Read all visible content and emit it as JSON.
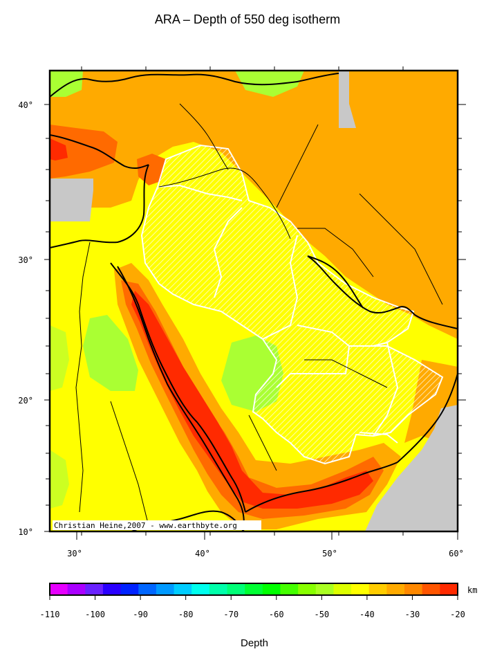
{
  "title": "ARA – Depth of 550 deg isotherm",
  "credit": "Christian Heine,2007 - www.earthbyte.org",
  "colors": {
    "orange": "#ffaa00",
    "dark_orange": "#ff6a00",
    "red": "#ff2a00",
    "light_orange": "#ff9900",
    "yellow": "#ffff00",
    "lime": "#aaff33",
    "green_yellow": "#ccff22",
    "gray": "#c8c8c8"
  },
  "map": {
    "lon_ticks": [
      "30°",
      "40°",
      "50°",
      "60°"
    ],
    "lat_ticks": [
      "10°",
      "20°",
      "30°",
      "40°"
    ]
  },
  "colorbar": {
    "unit": "km",
    "label": "Depth",
    "ticks": [
      "-110",
      "-100",
      "-90",
      "-80",
      "-70",
      "-60",
      "-50",
      "-40",
      "-30",
      "-20"
    ],
    "swatches": [
      "#e600ff",
      "#aa00ff",
      "#6a22ff",
      "#2a00ff",
      "#0022ff",
      "#0066ff",
      "#0099ff",
      "#00ccff",
      "#00ffee",
      "#00ffaa",
      "#00ff77",
      "#00ff33",
      "#00ff00",
      "#44ff00",
      "#88ff00",
      "#aaff22",
      "#ddff00",
      "#ffff00",
      "#ffcc00",
      "#ffaa00",
      "#ff8800",
      "#ff5500",
      "#ff2a00"
    ]
  }
}
